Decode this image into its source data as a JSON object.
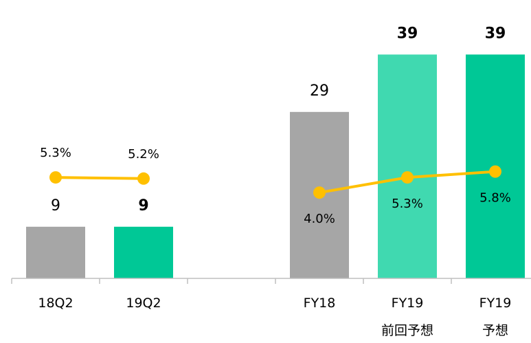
{
  "chart_data": {
    "type": "bar",
    "categories": [
      "18Q2",
      "19Q2",
      null,
      "FY18",
      "FY19\n前回予想",
      "FY19\n予想"
    ],
    "values": [
      9,
      9,
      null,
      29,
      39,
      39
    ],
    "colors": [
      "#a6a6a6",
      "#00c896",
      null,
      "#a6a6a6",
      "#40d9b0",
      "#00c896"
    ],
    "bold": [
      false,
      true,
      null,
      false,
      true,
      true
    ],
    "ylim": [
      0,
      48.5
    ],
    "series": [
      {
        "type": "line",
        "axis": "y2",
        "color": "#ffc000",
        "values": [
          5.3,
          5.2,
          null,
          4.0,
          5.3,
          5.8
        ],
        "value_labels": [
          "5.3%",
          "5.2%",
          null,
          "4.0%",
          "5.3%",
          "5.8%"
        ],
        "label_position": [
          "above",
          "above",
          null,
          "below",
          "below",
          "below"
        ]
      }
    ],
    "y2lim": [
      -3.35,
      20.5
    ]
  }
}
